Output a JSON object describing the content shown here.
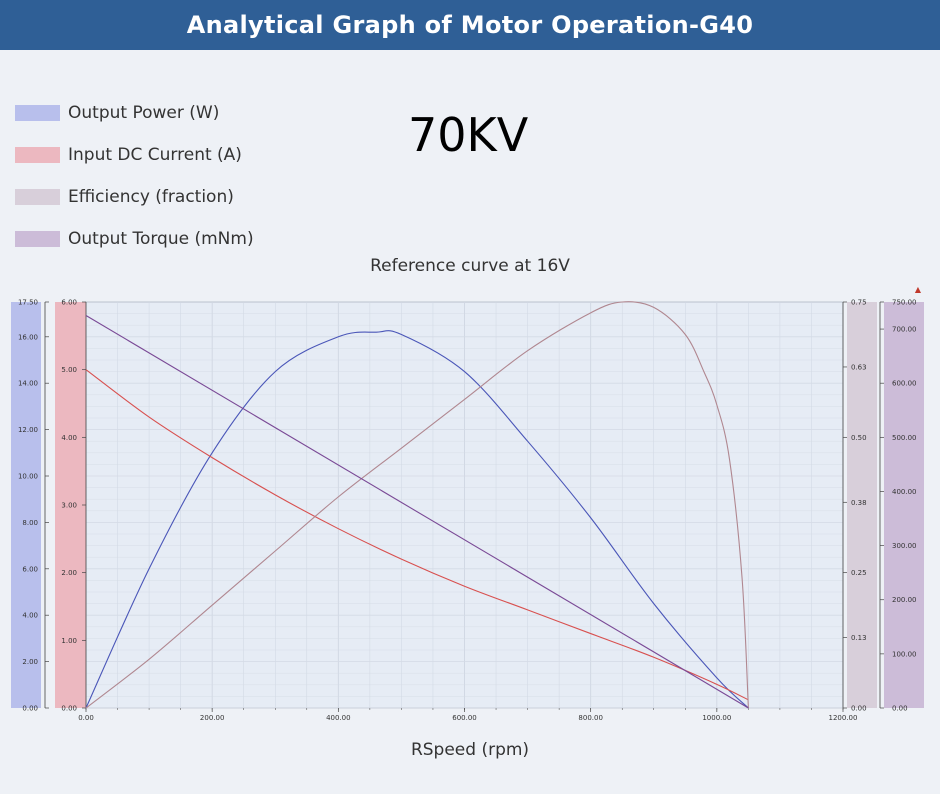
{
  "header": {
    "title": "Analytical Graph of Motor Operation-G40"
  },
  "kv_label": "70KV",
  "legend": [
    {
      "label": "Output Power (W)",
      "color": "#b8bfec"
    },
    {
      "label": "Input DC Current (A)",
      "color": "#ecb8c0"
    },
    {
      "label": "Efficiency (fraction)",
      "color": "#d8cfda"
    },
    {
      "label": "Output Torque (mNm)",
      "color": "#ccbcd8"
    }
  ],
  "chart_data": {
    "type": "line",
    "title": "Reference curve at 16V",
    "xlabel": "RSpeed (rpm)",
    "xlim": [
      0,
      1200
    ],
    "x_ticks": [
      "0.00",
      "200.00",
      "400.00",
      "600.00",
      "800.00",
      "1000.00",
      "1200.00"
    ],
    "grid": true,
    "axes": {
      "power": {
        "ylim": [
          0,
          17.5
        ],
        "ticks": [
          "0.00",
          "2.00",
          "4.00",
          "6.00",
          "8.00",
          "10.00",
          "12.00",
          "14.00",
          "16.00",
          "17.50"
        ],
        "band_color": "#b8bfec"
      },
      "current": {
        "ylim": [
          0,
          6.0
        ],
        "ticks": [
          "0.00",
          "1.00",
          "2.00",
          "3.00",
          "4.00",
          "5.00",
          "6.00"
        ],
        "band_color": "#ecb8c0"
      },
      "efficiency": {
        "ylim": [
          0,
          0.75
        ],
        "ticks": [
          "0.00",
          "0.13",
          "0.25",
          "0.38",
          "0.50",
          "0.63",
          "0.75"
        ],
        "band_color": "#d8cfda"
      },
      "torque": {
        "ylim": [
          0,
          750
        ],
        "ticks": [
          "0.00",
          "100.00",
          "200.00",
          "300.00",
          "400.00",
          "500.00",
          "600.00",
          "700.00",
          "750.00"
        ],
        "band_color": "#ccbcd8"
      }
    },
    "series": [
      {
        "name": "Output Power (W)",
        "axis": "power",
        "color": "#4a56b8",
        "x": [
          0,
          100,
          200,
          300,
          400,
          460,
          500,
          600,
          700,
          800,
          900,
          1000,
          1050
        ],
        "y": [
          0,
          6.0,
          11.0,
          14.5,
          16.0,
          16.2,
          16.1,
          14.5,
          11.5,
          8.2,
          4.5,
          1.3,
          0
        ]
      },
      {
        "name": "Input DC Current (A)",
        "axis": "current",
        "color": "#d8504f",
        "x": [
          0,
          100,
          200,
          300,
          400,
          500,
          600,
          700,
          800,
          900,
          1000,
          1050
        ],
        "y": [
          5.0,
          4.3,
          3.7,
          3.15,
          2.65,
          2.2,
          1.8,
          1.45,
          1.1,
          0.75,
          0.35,
          0.12
        ]
      },
      {
        "name": "Efficiency (fraction)",
        "axis": "efficiency",
        "color": "#b08790",
        "x": [
          0,
          100,
          200,
          300,
          400,
          500,
          600,
          700,
          800,
          850,
          900,
          950,
          980,
          1000,
          1020,
          1040,
          1050
        ],
        "y": [
          0,
          0.09,
          0.19,
          0.29,
          0.39,
          0.48,
          0.57,
          0.66,
          0.73,
          0.75,
          0.74,
          0.69,
          0.62,
          0.56,
          0.46,
          0.24,
          0
        ]
      },
      {
        "name": "Output Torque (mNm)",
        "axis": "torque",
        "color": "#7a4a96",
        "x": [
          0,
          1050
        ],
        "y": [
          725,
          0
        ]
      }
    ]
  },
  "marker": "▲"
}
